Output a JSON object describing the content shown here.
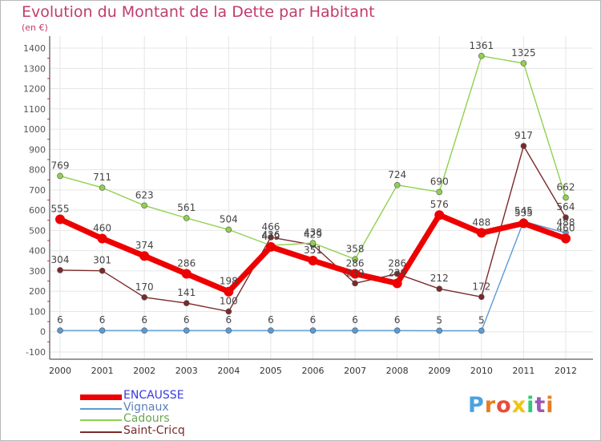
{
  "chart_data": {
    "type": "line",
    "title": "Evolution du Montant de la Dette par Habitant",
    "subtitle": "(en €)",
    "x": [
      "2000",
      "2001",
      "2002",
      "2003",
      "2004",
      "2005",
      "2006",
      "2007",
      "2008",
      "2009",
      "2010",
      "2011",
      "2012"
    ],
    "y_ticks": [
      "-100",
      "0",
      "100",
      "200",
      "300",
      "400",
      "500",
      "600",
      "700",
      "800",
      "900",
      "1000",
      "1100",
      "1200",
      "1300",
      "1400"
    ],
    "ylim": [
      -100,
      1400
    ],
    "grid": true,
    "legend_position": "bottom-left",
    "series": [
      {
        "name": "ENCAUSSE",
        "color": "#ee0000",
        "text_color": "#3a3ae0",
        "values": [
          555,
          460,
          374,
          286,
          198,
          419,
          351,
          286,
          239,
          576,
          488,
          535,
          460
        ],
        "labels": [
          "555",
          "460",
          "374",
          "286",
          "198",
          "419",
          "351",
          "286",
          "239",
          "576",
          "488",
          "535",
          "460"
        ]
      },
      {
        "name": "Vignaux",
        "color": "#5b9bd5",
        "text_color": "#5b7fb8",
        "values": [
          6,
          6,
          6,
          6,
          6,
          6,
          6,
          6,
          6,
          5,
          5,
          545,
          488
        ],
        "labels": [
          "6",
          "6",
          "6",
          "6",
          "6",
          "6",
          "6",
          "6",
          "6",
          "5",
          "5",
          "545",
          "488"
        ]
      },
      {
        "name": "Cadours",
        "color": "#8fd14f",
        "text_color": "#6aa84f",
        "values": [
          769,
          711,
          623,
          561,
          504,
          426,
          438,
          358,
          724,
          690,
          1361,
          1325,
          662
        ],
        "labels": [
          "769",
          "711",
          "623",
          "561",
          "504",
          "426",
          "438",
          "358",
          "724",
          "690",
          "1361",
          "1325",
          "662"
        ]
      },
      {
        "name": "Saint-Cricq",
        "color": "#7b2a2a",
        "text_color": "#7b2a2a",
        "values": [
          304,
          301,
          170,
          141,
          100,
          466,
          429,
          239,
          286,
          212,
          172,
          917,
          564
        ],
        "labels": [
          "304",
          "301",
          "170",
          "141",
          "100",
          "466",
          "429",
          "239",
          "286",
          "212",
          "172",
          "917",
          "564"
        ]
      }
    ]
  },
  "logo": {
    "text": "Proxiti",
    "letters": [
      "P",
      "r",
      "o",
      "x",
      "i",
      "t",
      "i"
    ],
    "colors": [
      "#4aa3df",
      "#e67e22",
      "#e74c3c",
      "#f1c40f",
      "#2ecc71",
      "#9b59b6",
      "#e67e22"
    ]
  }
}
